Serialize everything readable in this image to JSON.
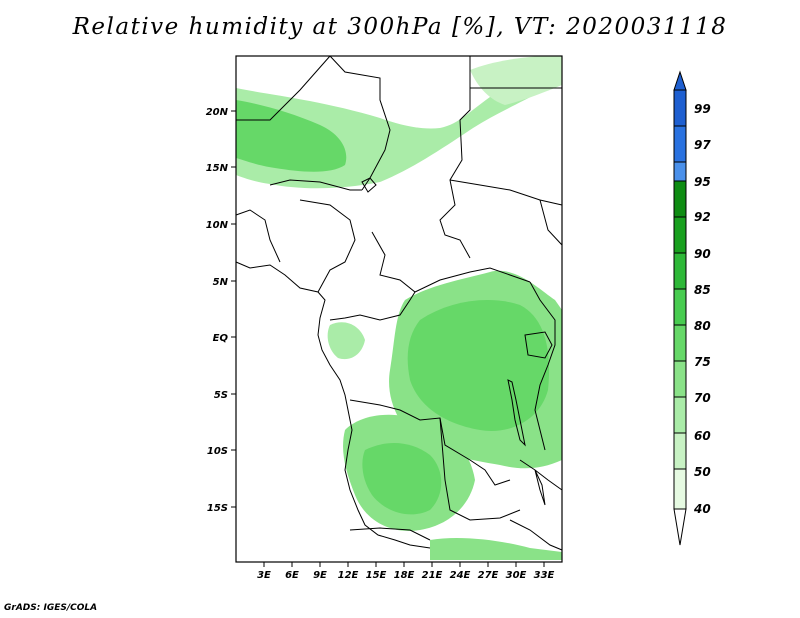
{
  "title": "Relative humidity at 300hPa [%], VT: 2020031118",
  "credit": "GrADS: IGES/COLA",
  "map": {
    "lat_labels": [
      "20N",
      "15N",
      "10N",
      "5N",
      "EQ",
      "5S",
      "10S",
      "15S"
    ],
    "lon_labels": [
      "3E",
      "6E",
      "9E",
      "12E",
      "15E",
      "18E",
      "21E",
      "24E",
      "27E",
      "30E",
      "33E"
    ]
  },
  "colorbar": {
    "levels": [
      "99",
      "97",
      "95",
      "92",
      "90",
      "85",
      "80",
      "75",
      "70",
      "60",
      "50",
      "40"
    ],
    "colors": {
      "above_99": "#1e5fd0",
      "97_99": "#2a72e0",
      "95_97": "#4a90ea",
      "92_95": "#0e8c12",
      "90_92": "#18a01e",
      "85_90": "#2eb838",
      "80_85": "#48cc50",
      "75_80": "#66d868",
      "70_75": "#8ae288",
      "60_70": "#aaeca8",
      "50_60": "#c8f2c4",
      "40_50": "#e6fae2",
      "below_40": "#ffffff"
    }
  }
}
